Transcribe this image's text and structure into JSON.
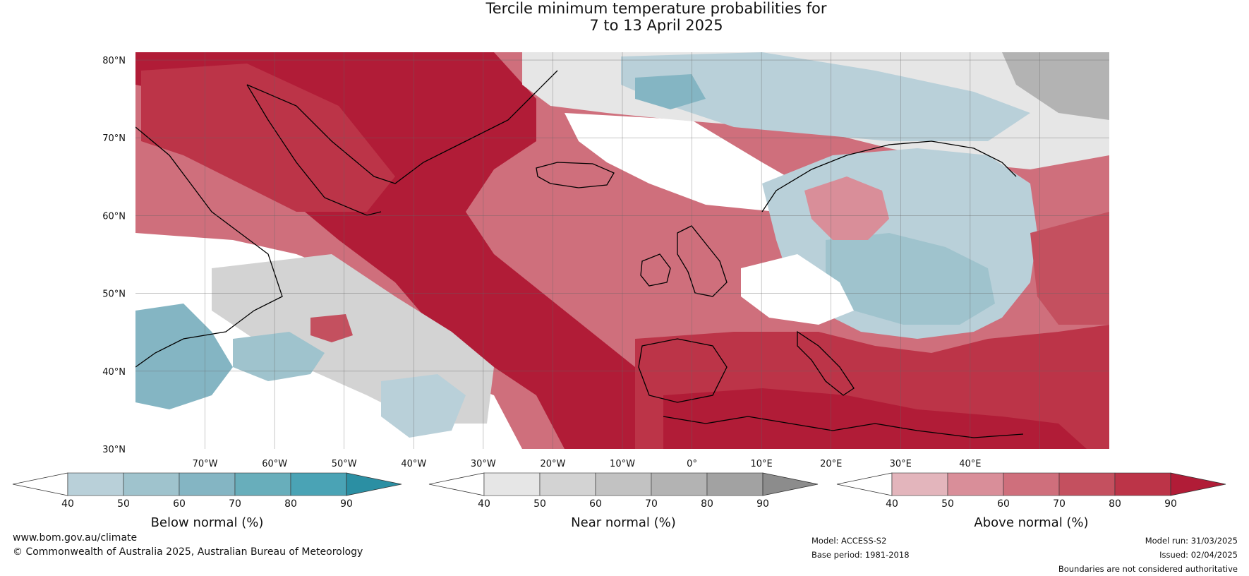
{
  "title": {
    "line1": "Tercile minimum temperature probabilities for",
    "line2": "7 to 13 April 2025"
  },
  "latitude_labels": [
    "80°N",
    "70°N",
    "60°N",
    "50°N",
    "40°N",
    "30°N"
  ],
  "longitude_labels": [
    "70°W",
    "60°W",
    "50°W",
    "40°W",
    "30°W",
    "20°W",
    "10°W",
    "0°",
    "10°E",
    "20°E",
    "30°E",
    "40°E"
  ],
  "colorbars": [
    {
      "title": "Below normal (%)",
      "ticks": [
        "40",
        "50",
        "60",
        "70",
        "80",
        "90"
      ],
      "colors": [
        "#ffffff",
        "#b9d0d9",
        "#9fc3cd",
        "#84b5c3",
        "#68aebb",
        "#4aa3b5",
        "#2b8fa3"
      ]
    },
    {
      "title": "Near normal (%)",
      "ticks": [
        "40",
        "50",
        "60",
        "70",
        "80",
        "90"
      ],
      "colors": [
        "#ffffff",
        "#e6e6e6",
        "#d3d3d3",
        "#c2c2c2",
        "#b3b3b3",
        "#a2a2a2",
        "#8c8c8c"
      ]
    },
    {
      "title": "Above normal (%)",
      "ticks": [
        "40",
        "50",
        "60",
        "70",
        "80",
        "90"
      ],
      "colors": [
        "#ffffff",
        "#e3b5bc",
        "#d98e99",
        "#cf6f7c",
        "#c4505f",
        "#bc3448",
        "#b11c37"
      ]
    }
  ],
  "footer": {
    "website": "www.bom.gov.au/climate",
    "copyright": "© Commonwealth of Australia 2025, Australian Bureau of Meteorology",
    "model": "Model: ACCESS-S2",
    "base_period": "Base period: 1981-2018",
    "model_run": "Model run: 31/03/2025",
    "issued": "Issued: 02/04/2025",
    "disclaimer": "Boundaries are not considered authoritative"
  }
}
